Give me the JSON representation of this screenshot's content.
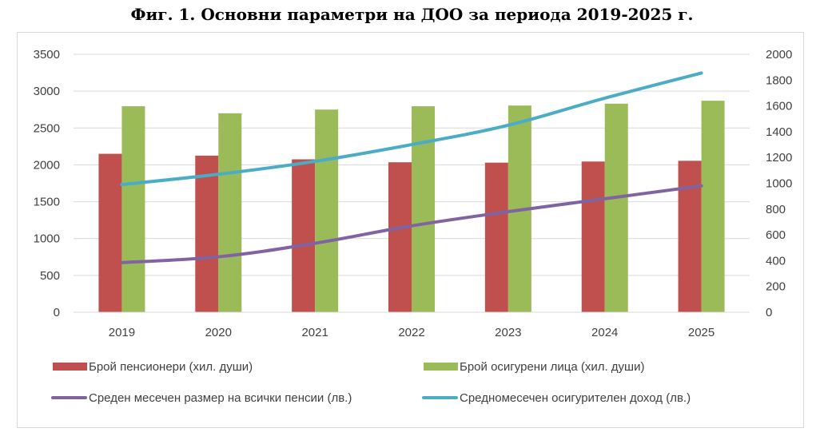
{
  "chart_data": {
    "type": "bar",
    "title": "Фиг. 1. Основни параметри на ДОО за периода 2019-2025 г.",
    "categories": [
      "2019",
      "2020",
      "2021",
      "2022",
      "2023",
      "2024",
      "2025"
    ],
    "y_left": {
      "min": 0,
      "max": 3500,
      "step": 500,
      "ticks": [
        "0",
        "500",
        "1000",
        "1500",
        "2000",
        "2500",
        "3000",
        "3500"
      ]
    },
    "y_right": {
      "min": 0,
      "max": 2000,
      "step": 200,
      "ticks": [
        "0",
        "200",
        "400",
        "600",
        "800",
        "1000",
        "1200",
        "1400",
        "1600",
        "1800",
        "2000"
      ]
    },
    "grid": true,
    "legend_position": "bottom",
    "bar_series": [
      {
        "name": "Брой пенсионери  (хил. души)",
        "color": "#c0504d",
        "axis": "left",
        "values": [
          2150,
          2125,
          2075,
          2035,
          2030,
          2045,
          2055
        ]
      },
      {
        "name": "Брой осигурени лица (хил. души)",
        "color": "#9bbb59",
        "axis": "left",
        "values": [
          2795,
          2700,
          2750,
          2795,
          2805,
          2830,
          2870
        ]
      }
    ],
    "line_series": [
      {
        "name": "Среден месечен размер на всички пенсии (лв.)",
        "color": "#8064a2",
        "axis": "right",
        "values": [
          385,
          430,
          535,
          670,
          780,
          880,
          980
        ]
      },
      {
        "name": "Средномесечен осигурителен доход (лв.)",
        "color": "#4bacc6",
        "axis": "right",
        "values": [
          990,
          1070,
          1170,
          1300,
          1450,
          1660,
          1855
        ]
      }
    ]
  }
}
